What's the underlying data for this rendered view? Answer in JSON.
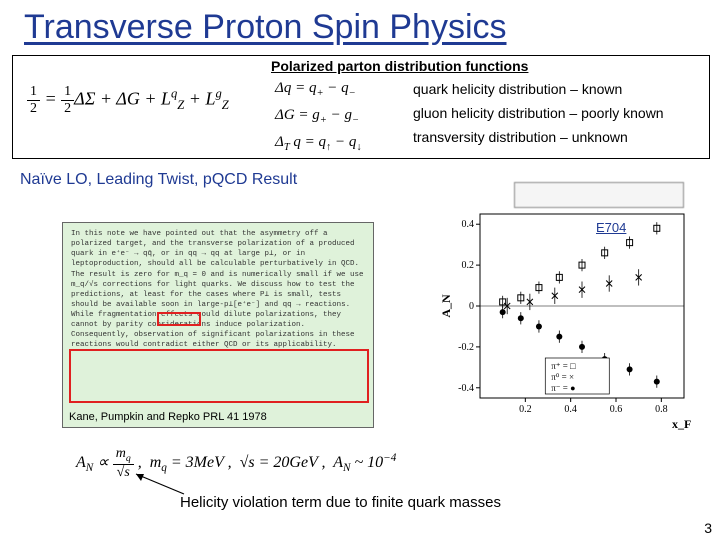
{
  "title": "Transverse Proton Spin Physics",
  "section_heading": "Polarized parton distribution functions",
  "spin_eq": "½ = ½ΔΣ + ΔG + L_Z^q + L_Z^g",
  "delta_q": "Δq = q₊ − q₋",
  "delta_g": "ΔG = g₊ − g₋",
  "delta_t": "Δ_T q = q↑ − q↓",
  "desc1": "quark  helicity distribution – known",
  "desc2": "gluon helicity distribution – poorly known",
  "desc3": "transversity distribution – unknown",
  "subtitle": "Naïve LO, Leading Twist, pQCD Result",
  "paper_text": "In this note we have pointed out that the asymmetry off a polarized target, and the transverse polarization of a produced quark in e⁺e⁻ → qq̄, or in qq → qq at large p⊥, or in leptoproduction, should all be calculable perturbatively in QCD. The result is zero for m_q = 0 and is numerically small if we use m_q/√s corrections for light quarks. We discuss how to test the predictions, at least for the cases where P⊥ is small, tests should be available soon in large-p⊥[e⁺e⁻] and qq → reactions. While fragmentation effects could dilute polarizations, they cannot by parity considerations induce polarization. Consequently, observation of significant polarizations in these reactions would contradict either QCD or its applicability.",
  "citation": "Kane, Pumpkin and Repko  PRL 41 1978",
  "e704_label": "E704",
  "bottom_eq": "A_N ∝ m_q/√s ,  m_q = 3MeV ,  √s = 20GeV ,  A_N ~ 10⁻⁴",
  "caption": "Helicity violation term due to finite quark masses",
  "page_number": "3",
  "chart": {
    "type": "scatter",
    "xlabel": "x_F",
    "ylabel": "A_N",
    "xlim": [
      0,
      0.9
    ],
    "ylim": [
      -0.45,
      0.45
    ],
    "yticks": [
      -0.4,
      -0.2,
      0,
      0.2,
      0.4
    ],
    "xticks": [
      0.2,
      0.4,
      0.6,
      0.8
    ],
    "background": "#ffffff",
    "tick_fontsize": 10,
    "label_fontsize": 12,
    "series": [
      {
        "name": "π⁺",
        "marker": "square-open",
        "color": "#000000",
        "points": [
          [
            0.1,
            0.02
          ],
          [
            0.18,
            0.04
          ],
          [
            0.26,
            0.09
          ],
          [
            0.35,
            0.14
          ],
          [
            0.45,
            0.2
          ],
          [
            0.55,
            0.26
          ],
          [
            0.66,
            0.31
          ],
          [
            0.78,
            0.38
          ]
        ],
        "yerr": 0.03
      },
      {
        "name": "π⁰",
        "marker": "x",
        "color": "#000000",
        "points": [
          [
            0.12,
            0.0
          ],
          [
            0.22,
            0.02
          ],
          [
            0.33,
            0.05
          ],
          [
            0.45,
            0.08
          ],
          [
            0.57,
            0.11
          ],
          [
            0.7,
            0.14
          ]
        ],
        "yerr": 0.04
      },
      {
        "name": "π⁻",
        "marker": "circle-filled",
        "color": "#000000",
        "points": [
          [
            0.1,
            -0.03
          ],
          [
            0.18,
            -0.06
          ],
          [
            0.26,
            -0.1
          ],
          [
            0.35,
            -0.15
          ],
          [
            0.45,
            -0.2
          ],
          [
            0.55,
            -0.26
          ],
          [
            0.66,
            -0.31
          ],
          [
            0.78,
            -0.37
          ]
        ],
        "yerr": 0.03
      }
    ],
    "legend": {
      "pos": "lower-center",
      "items": [
        "π⁺ = □",
        "π⁰ = ×",
        "π⁻ = ●"
      ]
    }
  },
  "colors": {
    "title": "#1f3a93",
    "highlight_box": "#e02020",
    "paper_bg": "#dff2da"
  }
}
